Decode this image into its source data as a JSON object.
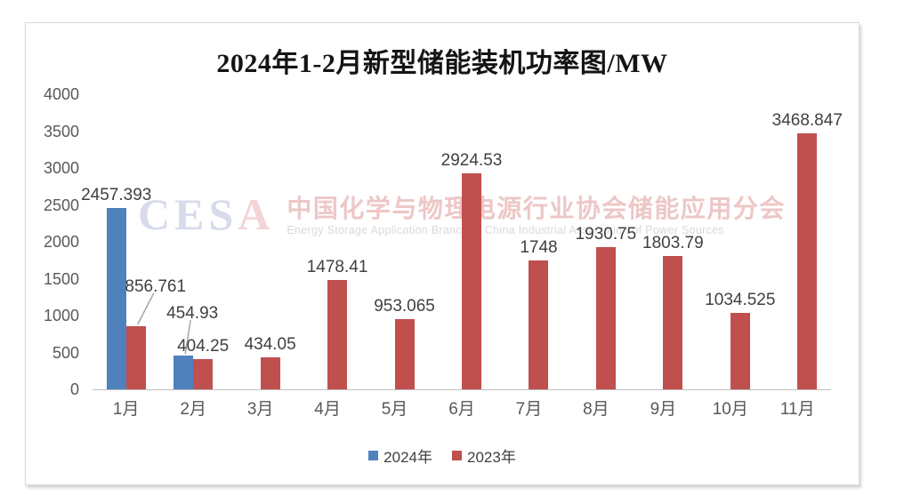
{
  "chart": {
    "watermark": {
      "logo": "CESA",
      "logo_letters": [
        {
          "ch": "C",
          "color": "#d7dbeb"
        },
        {
          "ch": "E",
          "color": "#d7dbeb"
        },
        {
          "ch": "S",
          "color": "#d7dbeb"
        },
        {
          "ch": "A",
          "color": "#f3d4d8"
        }
      ],
      "cn": "中国化学与物理电源行业协会储能应用分会",
      "en": "Energy Storage Application Branch of China Industrial Association of Power Sources"
    }
  },
  "chart_data": {
    "type": "bar",
    "title": "2024年1-2月新型储能装机功率图/MW",
    "ylabel": "",
    "xlabel": "",
    "categories": [
      "1月",
      "2月",
      "3月",
      "4月",
      "5月",
      "6月",
      "7月",
      "8月",
      "9月",
      "10月",
      "11月"
    ],
    "series": [
      {
        "name": "2024年",
        "color": "#4F81BD",
        "values": [
          2457.393,
          454.93,
          null,
          null,
          null,
          null,
          null,
          null,
          null,
          null,
          null
        ]
      },
      {
        "name": "2023年",
        "color": "#C0504D",
        "values": [
          856.761,
          404.25,
          434.05,
          1478.41,
          953.065,
          2924.53,
          1748,
          1930.75,
          1803.79,
          1034.525,
          3468.847
        ]
      }
    ],
    "data_labels": true,
    "ylim": [
      0,
      4000
    ],
    "yticks": [
      0,
      500,
      1000,
      1500,
      2000,
      2500,
      3000,
      3500,
      4000
    ],
    "grid": false,
    "legend_position": "bottom",
    "callouts": [
      {
        "series": 1,
        "cat": 0,
        "dx": 22,
        "raise": 30,
        "leader": true
      },
      {
        "series": 0,
        "cat": 1,
        "dx": 10,
        "raise": 33,
        "leader": true
      }
    ],
    "leader_color": "#a6a6a6"
  }
}
